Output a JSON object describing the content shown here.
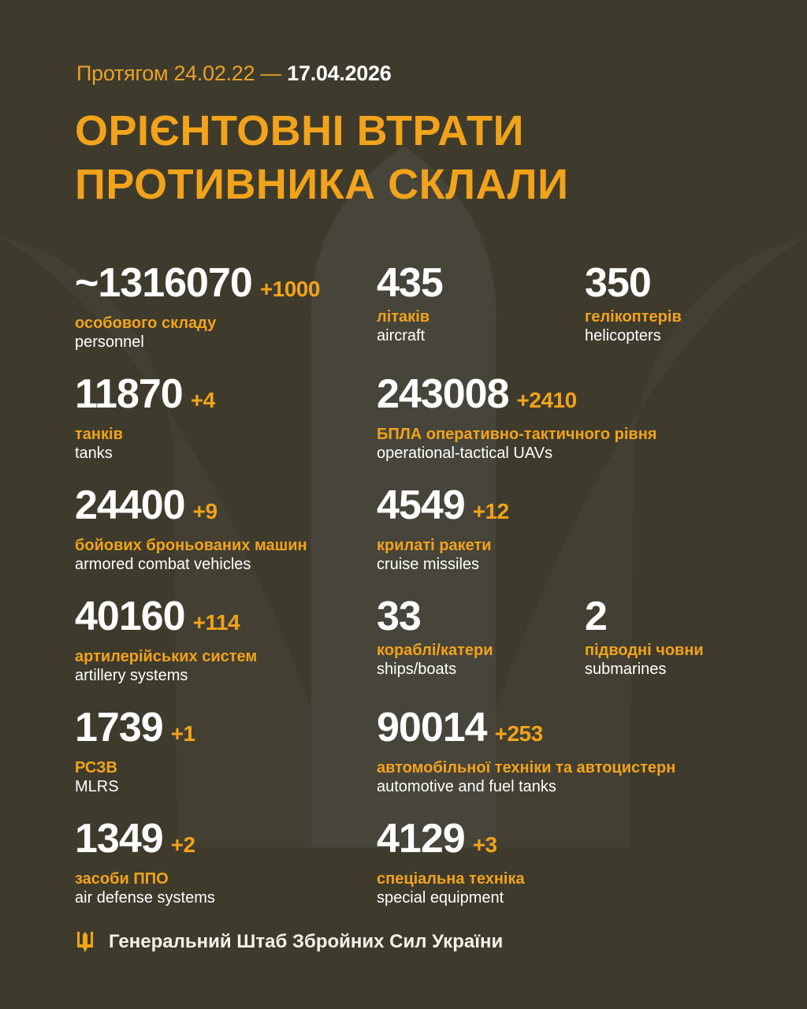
{
  "header": {
    "period_prefix": "Протягом 24.02.22 —",
    "period_end": "17.04.2026",
    "title_line1": "ОРІЄНТОВНІ ВТРАТИ",
    "title_line2": "ПРОТИВНИКА СКЛАЛИ"
  },
  "stats": [
    {
      "value": "~1316070",
      "delta": "+1000",
      "ua": "особового складу",
      "en": "personnel"
    },
    {
      "value": "435",
      "delta": "",
      "ua": "літаків",
      "en": "aircraft"
    },
    {
      "value": "350",
      "delta": "",
      "ua": "гелікоптерів",
      "en": "helicopters"
    },
    {
      "value": "11870",
      "delta": "+4",
      "ua": "танків",
      "en": "tanks"
    },
    {
      "value": "243008",
      "delta": "+2410",
      "ua": "БПЛА оперативно-тактичного рівня",
      "en": "operational-tactical UAVs"
    },
    {
      "value": "24400",
      "delta": "+9",
      "ua": "бойових броньованих машин",
      "en": "armored combat vehicles"
    },
    {
      "value": "4549",
      "delta": "+12",
      "ua": "крилаті ракети",
      "en": "cruise missiles"
    },
    {
      "value": "40160",
      "delta": "+114",
      "ua": "артилерійських систем",
      "en": "artillery systems"
    },
    {
      "value": "33",
      "delta": "",
      "ua": "кораблі/катери",
      "en": "ships/boats"
    },
    {
      "value": "2",
      "delta": "",
      "ua": "підводні човни",
      "en": "submarines"
    },
    {
      "value": "1739",
      "delta": "+1",
      "ua": "РСЗВ",
      "en": "MLRS"
    },
    {
      "value": "90014",
      "delta": "+253",
      "ua": "автомобільної техніки та автоцистерн",
      "en": "automotive and fuel tanks"
    },
    {
      "value": "1349",
      "delta": "+2",
      "ua": "засоби ППО",
      "en": "air defense systems"
    },
    {
      "value": "4129",
      "delta": "+3",
      "ua": "спеціальна техніка",
      "en": "special equipment"
    }
  ],
  "footer": {
    "text": "Генеральний Штаб Збройних Сил України",
    "icon": "trident-icon"
  },
  "colors": {
    "background": "#3e3b2d",
    "accent": "#f2a31b",
    "text": "#ffffff"
  }
}
